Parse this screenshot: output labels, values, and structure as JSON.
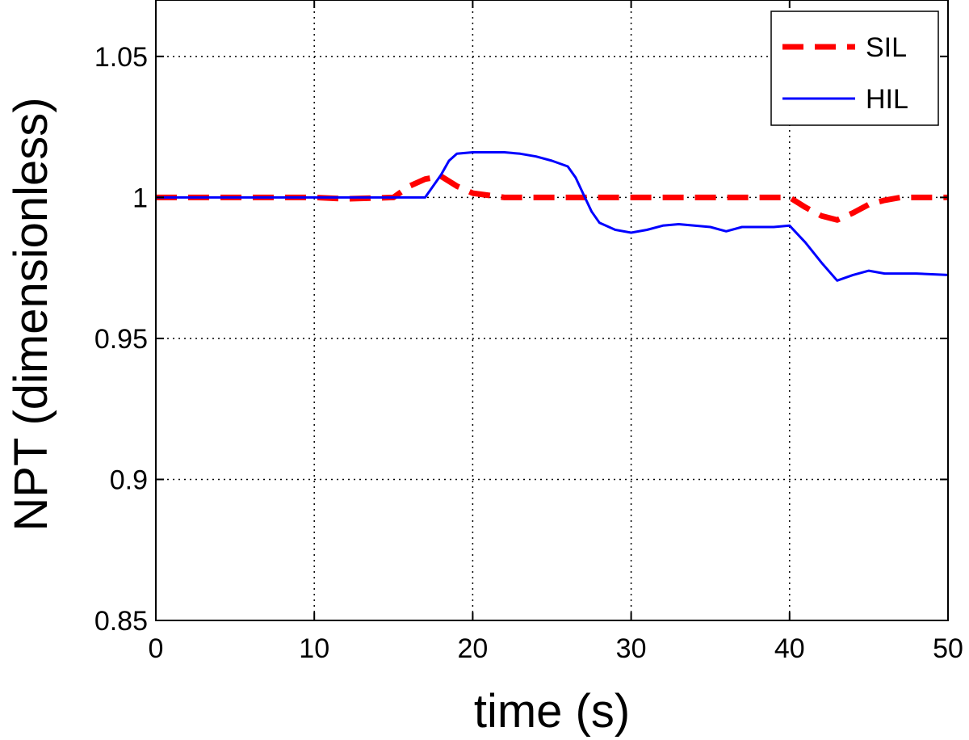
{
  "chart_data": {
    "type": "line",
    "title": "",
    "xlabel": "time (s)",
    "ylabel": "NPT (dimensionless)",
    "xlim": [
      0,
      50
    ],
    "ylim": [
      0.85,
      1.07
    ],
    "x_ticks": [
      0,
      10,
      20,
      30,
      40,
      50
    ],
    "x_tick_labels": [
      "0",
      "10",
      "20",
      "30",
      "40",
      "50"
    ],
    "y_ticks": [
      0.85,
      0.9,
      0.95,
      1.0,
      1.05
    ],
    "y_tick_labels": [
      "0.85",
      "0.9",
      "0.95",
      "1",
      "1.05"
    ],
    "grid": true,
    "legend_position": "top-right",
    "series": [
      {
        "name": "SIL",
        "color": "#ff0000",
        "line_style": "dashed",
        "x": [
          0,
          10,
          12,
          15,
          16,
          17,
          18,
          19,
          20,
          22,
          25,
          30,
          35,
          40,
          41,
          42,
          43,
          44,
          45,
          46,
          47,
          50
        ],
        "y": [
          1.0,
          1.0,
          0.9995,
          1.0,
          1.004,
          1.0065,
          1.0075,
          1.004,
          1.0015,
          1.0,
          1.0,
          1.0,
          1.0,
          1.0,
          0.9965,
          0.9935,
          0.992,
          0.9945,
          0.9975,
          0.999,
          1.0,
          1.0
        ]
      },
      {
        "name": "HIL",
        "color": "#0000ff",
        "line_style": "solid",
        "x": [
          0,
          10,
          17,
          18,
          18.5,
          19,
          20,
          22,
          23,
          24,
          25,
          26,
          26.5,
          27,
          27.5,
          28,
          29,
          30,
          31,
          32,
          33,
          34,
          35,
          36,
          37,
          38,
          39,
          40,
          41,
          42,
          43,
          44,
          45,
          46,
          48,
          50
        ],
        "y": [
          1.0,
          1.0,
          1.0,
          1.008,
          1.013,
          1.0155,
          1.016,
          1.016,
          1.0155,
          1.0145,
          1.013,
          1.011,
          1.007,
          1.001,
          0.995,
          0.991,
          0.9885,
          0.9875,
          0.9885,
          0.99,
          0.9905,
          0.99,
          0.9895,
          0.988,
          0.9895,
          0.9895,
          0.9895,
          0.99,
          0.984,
          0.977,
          0.9705,
          0.9725,
          0.974,
          0.973,
          0.973,
          0.9725
        ]
      }
    ]
  }
}
